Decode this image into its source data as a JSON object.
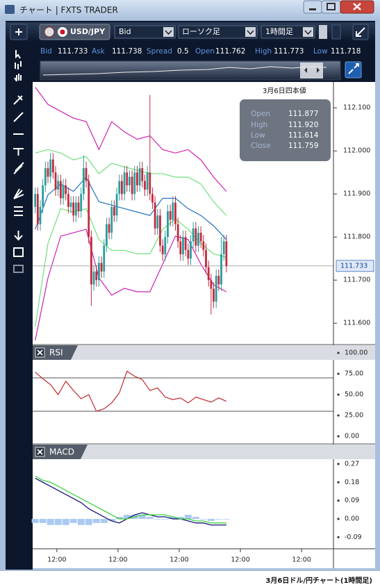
{
  "window": {
    "title": "チャート | FXTS TRADER"
  },
  "toolbar": {
    "pair": "USD/JPY",
    "price": "Bid",
    "chart_kind": "ローソク足",
    "timeframe": "1時間足"
  },
  "quote": {
    "labels": [
      "Bid",
      "Ask",
      "Spread",
      "Open",
      "High",
      "Low"
    ],
    "values": [
      "111.733",
      "111.738",
      "0.5",
      "111.762",
      "111.773",
      "111.718"
    ]
  },
  "chart_data": [
    {
      "type": "candlestick",
      "annotation": "3月6日四本値",
      "info_box": {
        "labels": [
          "Open",
          "High",
          "Low",
          "Close"
        ],
        "values": [
          "111.877",
          "111.920",
          "111.614",
          "111.759"
        ]
      },
      "up_color": "#2a9d9d",
      "down_color": "#c22a3e",
      "open": [
        111.87,
        111.9,
        111.83,
        111.87,
        111.92,
        111.96,
        111.94,
        111.98,
        111.95,
        111.91,
        111.93,
        111.89,
        111.92,
        111.9,
        111.87,
        111.88,
        111.85,
        111.88,
        111.86,
        111.9,
        111.96,
        111.93,
        111.8,
        111.69,
        111.72,
        111.7,
        111.74,
        111.72,
        111.78,
        111.83,
        111.81,
        111.87,
        111.85,
        111.9,
        111.93,
        111.9,
        111.95,
        111.92,
        111.94,
        111.9,
        111.95,
        111.92,
        111.96,
        111.93,
        111.91,
        111.95,
        111.9,
        111.88,
        111.82,
        111.85,
        111.78,
        111.76,
        111.8,
        111.86,
        111.84,
        111.88,
        111.83,
        111.79,
        111.76,
        111.8,
        111.77,
        111.75,
        111.79,
        111.82,
        111.78,
        111.81,
        111.79,
        111.77,
        111.73,
        111.7,
        111.68,
        111.65,
        111.71,
        111.69,
        111.76,
        111.79
      ],
      "high": [
        111.915,
        111.915,
        111.885,
        111.935,
        111.975,
        111.975,
        111.995,
        111.995,
        111.965,
        111.945,
        111.945,
        111.935,
        111.935,
        111.915,
        111.895,
        111.895,
        111.895,
        111.895,
        111.915,
        111.99,
        111.975,
        111.945,
        111.815,
        111.735,
        111.735,
        111.755,
        111.755,
        111.795,
        111.845,
        111.845,
        111.885,
        111.885,
        111.915,
        111.945,
        111.945,
        111.965,
        111.965,
        111.955,
        111.955,
        111.965,
        111.965,
        111.975,
        111.975,
        111.945,
        111.965,
        112.13,
        111.915,
        111.895,
        111.865,
        111.865,
        111.795,
        111.815,
        111.875,
        111.875,
        111.895,
        111.895,
        111.845,
        111.805,
        111.815,
        111.815,
        111.785,
        111.805,
        111.835,
        111.835,
        111.825,
        111.825,
        111.805,
        111.785,
        111.745,
        111.715,
        111.695,
        111.725,
        111.725,
        111.8,
        111.805,
        111.805
      ],
      "low": [
        111.855,
        111.815,
        111.815,
        111.855,
        111.905,
        111.925,
        111.925,
        111.935,
        111.895,
        111.895,
        111.875,
        111.875,
        111.885,
        111.855,
        111.855,
        111.835,
        111.835,
        111.845,
        111.845,
        111.885,
        111.915,
        111.785,
        111.64,
        111.675,
        111.685,
        111.685,
        111.705,
        111.705,
        111.765,
        111.795,
        111.795,
        111.835,
        111.835,
        111.885,
        111.885,
        111.885,
        111.905,
        111.905,
        111.885,
        111.885,
        111.905,
        111.905,
        111.915,
        111.895,
        111.895,
        111.885,
        111.865,
        111.805,
        111.805,
        111.765,
        111.745,
        111.745,
        111.785,
        111.825,
        111.825,
        111.815,
        111.775,
        111.745,
        111.745,
        111.755,
        111.735,
        111.735,
        111.775,
        111.765,
        111.765,
        111.775,
        111.755,
        111.715,
        111.685,
        111.62,
        111.635,
        111.635,
        111.675,
        111.675,
        111.745,
        111.718
      ],
      "close": [
        111.9,
        111.83,
        111.87,
        111.92,
        111.96,
        111.94,
        111.98,
        111.95,
        111.91,
        111.93,
        111.89,
        111.92,
        111.9,
        111.87,
        111.88,
        111.85,
        111.88,
        111.86,
        111.9,
        111.96,
        111.93,
        111.8,
        111.69,
        111.72,
        111.7,
        111.74,
        111.72,
        111.78,
        111.83,
        111.81,
        111.87,
        111.85,
        111.9,
        111.93,
        111.9,
        111.95,
        111.92,
        111.94,
        111.9,
        111.95,
        111.92,
        111.96,
        111.93,
        111.91,
        111.95,
        111.9,
        111.88,
        111.82,
        111.85,
        111.78,
        111.76,
        111.8,
        111.86,
        111.84,
        111.88,
        111.83,
        111.79,
        111.76,
        111.8,
        111.77,
        111.75,
        111.79,
        111.82,
        111.78,
        111.81,
        111.79,
        111.77,
        111.73,
        111.7,
        111.68,
        111.65,
        111.71,
        111.69,
        111.76,
        111.79,
        111.733
      ],
      "overlays": [
        {
          "color": "#d020b0",
          "x": [
            0,
            5,
            10,
            15,
            20,
            25,
            30,
            35,
            40,
            45,
            50,
            55,
            60,
            65,
            70,
            75
          ],
          "values": [
            112.148,
            112.108,
            112.092,
            112.076,
            112.068,
            112.003,
            112.068,
            112.044,
            112.027,
            112.035,
            112.003,
            111.995,
            112.003,
            111.979,
            111.939,
            111.906
          ]
        },
        {
          "color": "#d020b0",
          "x": [
            0,
            5,
            10,
            15,
            20,
            25,
            30,
            35,
            40,
            45,
            50,
            55,
            60,
            65,
            70,
            75
          ],
          "values": [
            111.56,
            111.705,
            111.802,
            111.81,
            111.818,
            111.705,
            111.665,
            111.681,
            111.673,
            111.673,
            111.737,
            111.802,
            111.794,
            111.737,
            111.689,
            111.673
          ]
        },
        {
          "color": "#6ee07a",
          "x": [
            0,
            5,
            10,
            15,
            20,
            25,
            30,
            35,
            40,
            45,
            50,
            55,
            60,
            65,
            70,
            75
          ],
          "values": [
            111.995,
            112.003,
            111.995,
            111.979,
            111.987,
            111.947,
            111.971,
            111.963,
            111.955,
            111.947,
            111.947,
            111.939,
            111.939,
            111.923,
            111.882,
            111.85
          ]
        },
        {
          "color": "#6ee07a",
          "x": [
            0,
            5,
            10,
            15,
            20,
            25,
            30,
            35,
            40,
            45,
            50,
            55,
            60,
            65,
            70,
            75
          ],
          "values": [
            111.592,
            111.785,
            111.866,
            111.858,
            111.866,
            111.794,
            111.769,
            111.769,
            111.761,
            111.761,
            111.818,
            111.842,
            111.818,
            111.785,
            111.761,
            111.753
          ]
        },
        {
          "color": "#1f6fc0",
          "x": [
            0,
            5,
            10,
            15,
            20,
            25,
            30,
            35,
            40,
            45,
            50,
            55,
            60,
            65,
            70,
            75
          ],
          "values": [
            111.818,
            111.898,
            111.923,
            111.906,
            111.939,
            111.882,
            111.874,
            111.866,
            111.858,
            111.85,
            111.89,
            111.89,
            111.866,
            111.85,
            111.826,
            111.794
          ]
        }
      ],
      "last": 111.733,
      "xlim": [
        -1,
        117
      ],
      "ylim": [
        111.552,
        112.16
      ],
      "yticks": [
        {
          "value": 111.6,
          "label": "111.600"
        },
        {
          "value": 111.7,
          "label": "111.700"
        },
        {
          "value": 111.8,
          "label": "111.800"
        },
        {
          "value": 111.9,
          "label": "111.900"
        },
        {
          "value": 112,
          "label": "112.000"
        },
        {
          "value": 112.1,
          "label": "112.100"
        }
      ]
    },
    {
      "type": "line",
      "title": "RSI",
      "color": "#c0282a",
      "x": [
        0,
        3,
        6,
        9,
        12,
        15,
        18,
        21,
        24,
        27,
        30,
        33,
        36,
        39,
        42,
        45,
        48,
        51,
        54,
        57,
        60,
        63,
        66,
        69,
        72,
        75
      ],
      "values": [
        77,
        69,
        62,
        50,
        66,
        55,
        45,
        50,
        30,
        33,
        40,
        52,
        78,
        72,
        68,
        55,
        58,
        47,
        44,
        46,
        40,
        47,
        44,
        41,
        46,
        42
      ],
      "levels": [
        70,
        30
      ],
      "level_color": "#555555",
      "xlim": [
        -1,
        117
      ],
      "ylim": [
        -8.3,
        106.7
      ],
      "yticks": [
        {
          "value": 0,
          "label": "0.00"
        },
        {
          "value": 25,
          "label": "25.00"
        },
        {
          "value": 50,
          "label": "50.00"
        },
        {
          "value": 75,
          "label": "75.00"
        },
        {
          "value": 100,
          "label": "100.00"
        }
      ]
    },
    {
      "type": "macd",
      "title": "MACD",
      "x": [
        0,
        3,
        6,
        9,
        12,
        15,
        18,
        21,
        24,
        27,
        30,
        33,
        36,
        39,
        42,
        45,
        48,
        51,
        54,
        57,
        60,
        63,
        66,
        69,
        72,
        75
      ],
      "histogram": {
        "color": "#a9c9f2",
        "values": [
          -0.02,
          -0.02,
          -0.03,
          -0.03,
          -0.03,
          -0.02,
          -0.03,
          -0.03,
          -0.02,
          -0.02,
          -0.01,
          0.01,
          0.02,
          0.02,
          0.02,
          0.01,
          0,
          0,
          0.01,
          0.01,
          0.02,
          0.01,
          0,
          -0.01,
          0,
          0
        ]
      },
      "series": [
        {
          "color": "#14137a",
          "values": [
            0.2,
            0.18,
            0.16,
            0.14,
            0.12,
            0.1,
            0.08,
            0.05,
            0.03,
            0.01,
            -0.01,
            -0.02,
            0,
            0.02,
            0.03,
            0.02,
            0.01,
            0.01,
            0,
            0,
            -0.01,
            -0.02,
            -0.02,
            -0.03,
            -0.03,
            -0.03
          ]
        },
        {
          "color": "#3ed13e",
          "values": [
            0.21,
            0.19,
            0.18,
            0.16,
            0.14,
            0.12,
            0.1,
            0.08,
            0.06,
            0.04,
            0.02,
            0,
            0,
            0.01,
            0.02,
            0.02,
            0.02,
            0.02,
            0.01,
            0,
            0,
            -0.01,
            -0.01,
            -0.02,
            -0.02,
            -0.02
          ]
        }
      ],
      "xlim": [
        -1,
        117
      ],
      "ylim": [
        -0.147,
        0.297
      ],
      "yticks": [
        -0.09,
        {
          "value": 0,
          "label": "0.00"
        },
        0.09,
        0.18,
        0.27
      ],
      "xticks": [
        {
          "value": 8.5,
          "label": "12:00"
        },
        {
          "value": 32.5,
          "label": "12:00"
        },
        {
          "value": 56.5,
          "label": "12:00"
        },
        {
          "value": 80.5,
          "label": "12:00"
        },
        {
          "value": 104.5,
          "label": "12:00"
        }
      ]
    }
  ],
  "caption": "3月6日ドル/円チャート(1時間足)"
}
